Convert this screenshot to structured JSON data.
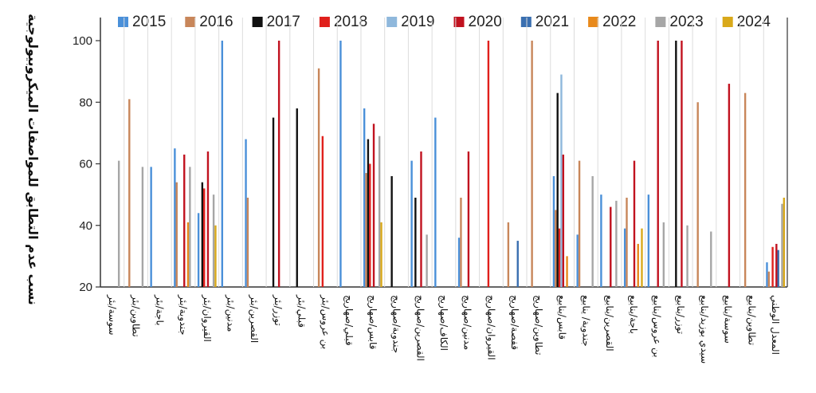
{
  "chart_data": {
    "type": "bar",
    "ylabel": "نسب عدم التطابق للمواصفات الميكروبيولوجية",
    "ylim": [
      20,
      100
    ],
    "yticks": [
      20,
      40,
      60,
      80,
      100
    ],
    "grid": "vertical separators between categories",
    "legend_position": "top",
    "categories": [
      "سوسة/بئر",
      "تطاوين/بئر",
      "باجة/بئر",
      "جندوبة/بئر",
      "القيروان/بئر",
      "مدنين/بئر",
      "القصرين/بئر",
      "توزر/بئر",
      "قبلي/بئر",
      "بن عروس/بئر",
      "قبلي/صهاريج",
      "قابس/صهاريج",
      "جندوبة/صهاريج",
      "القصرين/صهاريج",
      "الكاف/صهاريج",
      "مدنين/صهاريج",
      "القيروان/صهاريج",
      "قفصة/صهاريج",
      "تطاوين/صهاريج",
      "قابس/ينابيع",
      "جندوبة/ ينابيع",
      "القصرين/ينابيع",
      "باجة/ينابيع",
      "بن عروس/ينابيع",
      "توزر/ينابيع",
      "سيدي بوزيد/ينابيع",
      "سوسة/ينابيع",
      "تطاوين/ينابيع",
      "المعدل الوطني"
    ],
    "series": [
      {
        "name": "2015",
        "color": "#4a90d9",
        "values": [
          null,
          null,
          59,
          65,
          44,
          100,
          68,
          null,
          null,
          null,
          100,
          78,
          null,
          61,
          75,
          36,
          null,
          null,
          null,
          56,
          37,
          50,
          39,
          50,
          null,
          null,
          null,
          null,
          28
        ]
      },
      {
        "name": "2016",
        "color": "#c8865a",
        "values": [
          null,
          81,
          null,
          54,
          null,
          null,
          49,
          null,
          null,
          91,
          null,
          57,
          null,
          null,
          null,
          49,
          null,
          41,
          100,
          45,
          61,
          null,
          49,
          null,
          null,
          80,
          null,
          83,
          25
        ]
      },
      {
        "name": "2017",
        "color": "#111111",
        "values": [
          null,
          null,
          null,
          null,
          54,
          null,
          null,
          75,
          78,
          null,
          null,
          68,
          56,
          49,
          null,
          null,
          null,
          null,
          null,
          83,
          null,
          null,
          null,
          null,
          100,
          null,
          null,
          null,
          null
        ]
      },
      {
        "name": "2018",
        "color": "#e0201c",
        "values": [
          null,
          null,
          null,
          null,
          52,
          null,
          null,
          null,
          null,
          69,
          null,
          60,
          null,
          null,
          null,
          null,
          100,
          null,
          null,
          39,
          null,
          null,
          null,
          null,
          null,
          null,
          null,
          null,
          33
        ]
      },
      {
        "name": "2019",
        "color": "#8fb8dc",
        "values": [
          null,
          null,
          null,
          null,
          null,
          null,
          null,
          null,
          null,
          null,
          null,
          null,
          null,
          null,
          null,
          null,
          null,
          null,
          null,
          89,
          null,
          null,
          null,
          null,
          null,
          null,
          null,
          null,
          null
        ]
      },
      {
        "name": "2020",
        "color": "#c1121f",
        "values": [
          null,
          null,
          null,
          63,
          64,
          null,
          null,
          100,
          null,
          null,
          null,
          73,
          null,
          64,
          null,
          64,
          null,
          null,
          null,
          63,
          null,
          46,
          61,
          100,
          100,
          null,
          86,
          null,
          34
        ]
      },
      {
        "name": "2021",
        "color": "#3a6fb0",
        "values": [
          null,
          null,
          null,
          null,
          null,
          null,
          null,
          null,
          null,
          null,
          null,
          null,
          null,
          null,
          null,
          null,
          null,
          35,
          null,
          null,
          null,
          null,
          null,
          null,
          null,
          null,
          null,
          null,
          32
        ]
      },
      {
        "name": "2022",
        "color": "#e8891b",
        "values": [
          null,
          null,
          null,
          41,
          null,
          null,
          null,
          null,
          null,
          null,
          null,
          null,
          null,
          null,
          null,
          null,
          null,
          null,
          null,
          30,
          null,
          null,
          34,
          null,
          null,
          null,
          null,
          null,
          null
        ]
      },
      {
        "name": "2023",
        "color": "#a6a6a6",
        "values": [
          61,
          59,
          null,
          59,
          50,
          null,
          null,
          null,
          null,
          null,
          null,
          69,
          null,
          37,
          null,
          null,
          null,
          null,
          null,
          null,
          56,
          48,
          null,
          41,
          40,
          38,
          null,
          null,
          47
        ]
      },
      {
        "name": "2024",
        "color": "#d9a91a",
        "values": [
          null,
          null,
          null,
          null,
          40,
          null,
          null,
          null,
          null,
          null,
          null,
          41,
          null,
          null,
          null,
          null,
          null,
          null,
          null,
          null,
          null,
          null,
          39,
          null,
          null,
          null,
          null,
          null,
          49
        ]
      }
    ]
  }
}
